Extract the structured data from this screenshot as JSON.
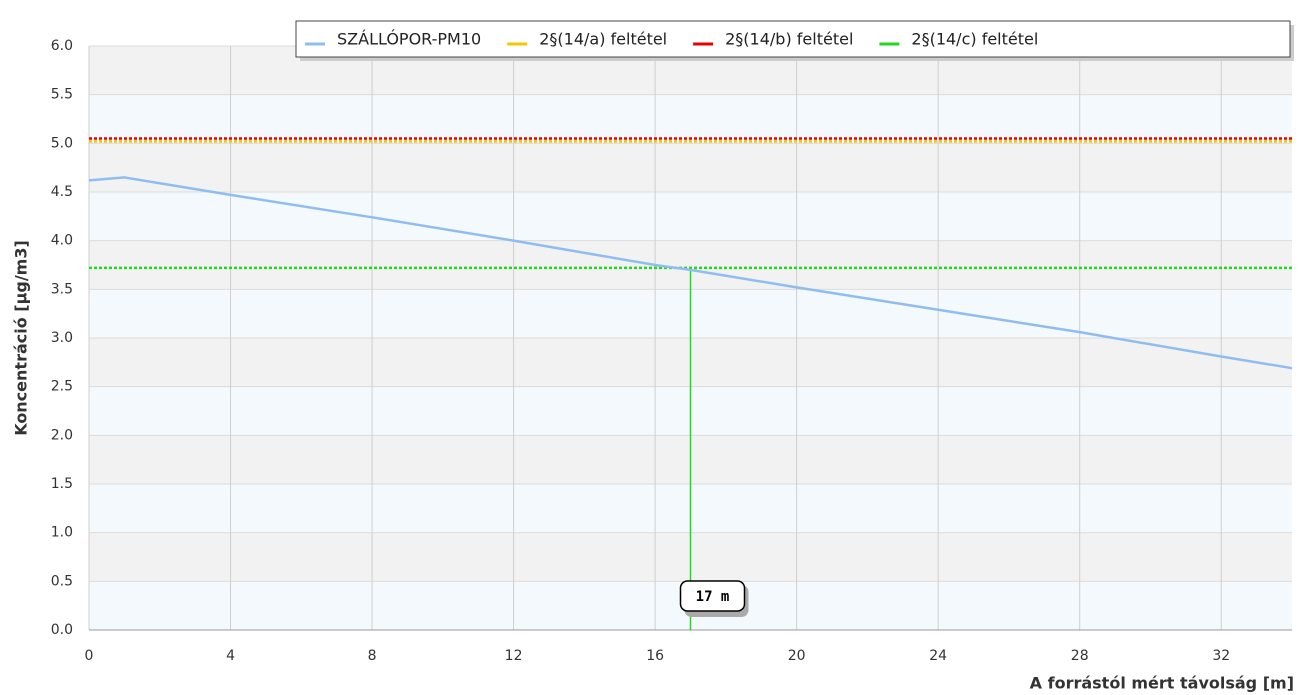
{
  "chart_data": {
    "type": "line",
    "xlabel": "A forrástól mért távolság [m]",
    "ylabel": "Koncentráció [µg/m3]",
    "xlim": [
      0,
      34
    ],
    "ylim": [
      0,
      6
    ],
    "xticks": [
      0,
      4,
      8,
      12,
      16,
      20,
      24,
      28,
      32
    ],
    "yticks": [
      {
        "value": 0,
        "label": "0.0"
      },
      {
        "value": 0.5,
        "label": "0.5"
      },
      {
        "value": 1,
        "label": "1.0"
      },
      {
        "value": 1.5,
        "label": "1.5"
      },
      {
        "value": 2,
        "label": "2.0"
      },
      {
        "value": 2.5,
        "label": "2.5"
      },
      {
        "value": 3,
        "label": "3.0"
      },
      {
        "value": 3.5,
        "label": "3.5"
      },
      {
        "value": 4,
        "label": "4.0"
      },
      {
        "value": 4.5,
        "label": "4.5"
      },
      {
        "value": 5,
        "label": "5.0"
      },
      {
        "value": 5.5,
        "label": "5.5"
      },
      {
        "value": 6,
        "label": "6.0"
      }
    ],
    "grid": true,
    "legend": "top-right",
    "series": [
      {
        "name": "SZÁLLÓPOR-PM10",
        "color": "#90bdf0",
        "x": [
          0,
          1,
          4,
          8,
          12,
          16,
          17,
          20,
          24,
          28,
          32,
          34
        ],
        "values": [
          4.62,
          4.65,
          4.47,
          4.24,
          4.0,
          3.75,
          3.7,
          3.52,
          3.29,
          3.06,
          2.81,
          2.69
        ]
      },
      {
        "name": "2§(14/a) feltétel",
        "color": "#f0c800",
        "level": 5.02
      },
      {
        "name": "2§(14/b) feltétel",
        "color": "#e80000",
        "level": 5.05
      },
      {
        "name": "2§(14/c) feltétel",
        "color": "#20d820",
        "level": 3.72
      }
    ],
    "annotation": {
      "x": 17,
      "label": "17 m",
      "color": "#20d820"
    }
  }
}
